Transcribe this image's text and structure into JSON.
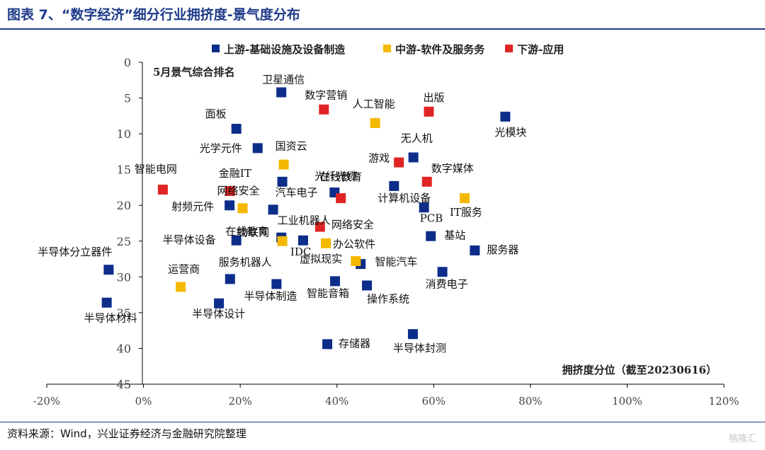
{
  "header": {
    "title": "图表 7、“数字经济”细分行业拥挤度-景气度分布"
  },
  "footer": {
    "source": "资料来源：Wind，兴业证券经济与金融研究院整理",
    "watermark": "格隆汇"
  },
  "chart_data": {
    "type": "scatter",
    "title": "",
    "xlabel": "拥挤度分位（截至20230616）",
    "ylabel": "5月景气综合排名",
    "xlim": [
      -20,
      120
    ],
    "ylim": [
      45,
      0
    ],
    "y_inverted": true,
    "x_ticks": [
      "-20%",
      "0%",
      "20%",
      "40%",
      "60%",
      "80%",
      "100%",
      "120%"
    ],
    "y_ticks": [
      "0",
      "5",
      "10",
      "15",
      "20",
      "25",
      "30",
      "35",
      "40",
      "45"
    ],
    "grid": false,
    "legend_position": "top",
    "series": [
      {
        "name": "上游-基础设施及设备制造",
        "color": "#0c2d8a",
        "points": [
          {
            "label": "卫星通信",
            "x": 28.5,
            "y": 4.2
          },
          {
            "label": "面板",
            "x": 19.2,
            "y": 9.3
          },
          {
            "label": "光学元件",
            "x": 23.6,
            "y": 12.0
          },
          {
            "label": "光模块",
            "x": 74.8,
            "y": 7.6
          },
          {
            "label": "无人机",
            "x": 55.8,
            "y": 13.3
          },
          {
            "label": "汽车电子",
            "x": 28.7,
            "y": 16.7
          },
          {
            "label": "光纤光缆",
            "x": 39.5,
            "y": 18.2
          },
          {
            "label": "计算机设备",
            "x": 51.8,
            "y": 17.3
          },
          {
            "label": "射频元件",
            "x": 17.8,
            "y": 20.0
          },
          {
            "label": "工业机器人",
            "x": 26.8,
            "y": 20.6
          },
          {
            "label": "PCB",
            "x": 58.0,
            "y": 20.3
          },
          {
            "label": "半导体设备",
            "x": 19.2,
            "y": 24.9
          },
          {
            "label": "物联网",
            "x": 28.5,
            "y": 24.5
          },
          {
            "label": "IDC",
            "x": 33.0,
            "y": 24.9
          },
          {
            "label": "基站",
            "x": 59.4,
            "y": 24.3
          },
          {
            "label": "服务器",
            "x": 68.5,
            "y": 26.3
          },
          {
            "label": "半导体分立器件",
            "x": -7.2,
            "y": 29.0
          },
          {
            "label": "虚拟现实",
            "x": 44.9,
            "y": 28.2
          },
          {
            "label": "服务机器人",
            "x": 17.9,
            "y": 30.3
          },
          {
            "label": "半导体制造",
            "x": 27.5,
            "y": 31.0
          },
          {
            "label": "智能音箱",
            "x": 39.6,
            "y": 30.6
          },
          {
            "label": "操作系统",
            "x": 46.2,
            "y": 31.2
          },
          {
            "label": "消费电子",
            "x": 61.8,
            "y": 29.3
          },
          {
            "label": "半导体材料",
            "x": -7.6,
            "y": 33.6
          },
          {
            "label": "半导体设计",
            "x": 15.6,
            "y": 33.7
          },
          {
            "label": "存储器",
            "x": 38.0,
            "y": 39.4
          },
          {
            "label": "半导体封测",
            "x": 55.7,
            "y": 38.0
          }
        ]
      },
      {
        "name": "中游-软件及服务务",
        "color": "#f5b800",
        "points": [
          {
            "label": "人工智能",
            "x": 47.9,
            "y": 8.5
          },
          {
            "label": "国资云",
            "x": 29.0,
            "y": 14.3
          },
          {
            "label": "IT服务",
            "x": 66.4,
            "y": 19.0
          },
          {
            "label": "网络安全",
            "x": 20.5,
            "y": 20.4
          },
          {
            "label": "在线教育",
            "x": 28.7,
            "y": 25.0
          },
          {
            "label": "办公软件",
            "x": 37.7,
            "y": 25.3
          },
          {
            "label": "运营商",
            "x": 7.7,
            "y": 31.4
          },
          {
            "label": "智能汽车",
            "x": 43.9,
            "y": 27.8
          }
        ]
      },
      {
        "name": "下游-应用",
        "color": "#e02424",
        "points": [
          {
            "label": "数字营销",
            "x": 37.3,
            "y": 6.6
          },
          {
            "label": "出版",
            "x": 59.0,
            "y": 6.9
          },
          {
            "label": "游戏",
            "x": 52.8,
            "y": 14.0
          },
          {
            "label": "数字媒体",
            "x": 58.6,
            "y": 16.7
          },
          {
            "label": "智能电网",
            "x": 4.0,
            "y": 17.8
          },
          {
            "label": "金融IT",
            "x": 17.9,
            "y": 18.0
          },
          {
            "label": "在线教育",
            "x": 40.8,
            "y": 19.0
          },
          {
            "label": "网络安全",
            "x": 36.5,
            "y": 23.0
          }
        ]
      }
    ]
  }
}
